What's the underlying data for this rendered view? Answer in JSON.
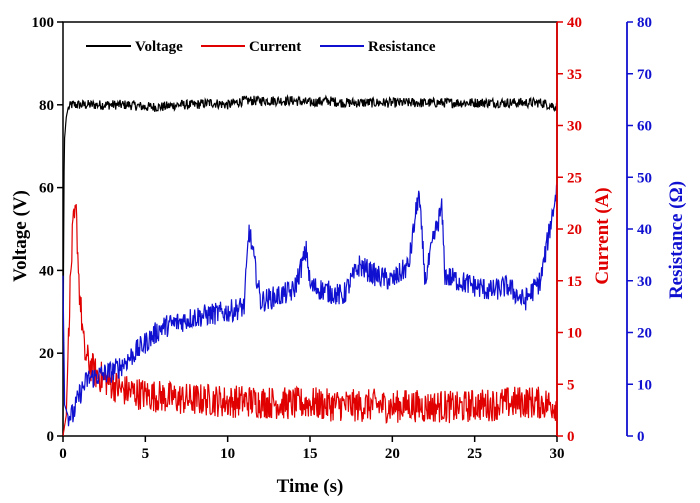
{
  "chart_data": {
    "type": "line",
    "xlabel": "Time (s)",
    "xlim": [
      0,
      30
    ],
    "x_ticks": [
      "0",
      "5",
      "10",
      "15",
      "20",
      "25",
      "30"
    ],
    "axes": {
      "left": {
        "label": "Voltage (V)",
        "ylim": [
          0,
          100
        ],
        "ticks": [
          "0",
          "20",
          "40",
          "60",
          "80",
          "100"
        ],
        "color": "#000000"
      },
      "right1": {
        "label": "Current (A)",
        "ylim": [
          0,
          40
        ],
        "ticks": [
          "0",
          "5",
          "10",
          "15",
          "20",
          "25",
          "30",
          "35",
          "40"
        ],
        "color": "#e00000"
      },
      "right2": {
        "label": "Resistance (Ω)",
        "ylim": [
          0,
          80
        ],
        "ticks": [
          "0",
          "10",
          "20",
          "30",
          "40",
          "50",
          "60",
          "70",
          "80"
        ],
        "color": "#1010d0"
      }
    },
    "legend_position": "top-left",
    "series": [
      {
        "name": "Voltage",
        "axis": "left",
        "color": "#000000",
        "x": [
          0,
          0.05,
          0.1,
          0.2,
          0.3,
          0.5,
          1,
          2,
          3,
          4,
          5,
          6,
          7,
          8,
          9,
          10,
          11,
          12,
          13,
          14,
          15,
          16,
          17,
          18,
          19,
          20,
          21,
          22,
          23,
          24,
          25,
          26,
          27,
          28,
          29,
          30
        ],
        "y": [
          0,
          60,
          72,
          77,
          79,
          80,
          80,
          80,
          80,
          80,
          79.5,
          79.5,
          80,
          80,
          80.5,
          80,
          81,
          81,
          81,
          81,
          80.5,
          81,
          80.5,
          80.5,
          80.5,
          80.5,
          80.5,
          80.5,
          80.5,
          80.5,
          80.5,
          80.5,
          80.5,
          80.5,
          80.5,
          79.5
        ]
      },
      {
        "name": "Current",
        "axis": "right1",
        "color": "#e00000",
        "x": [
          0,
          0.2,
          0.4,
          0.6,
          0.8,
          1,
          1.3,
          1.6,
          2,
          2.5,
          3,
          3.5,
          4,
          5,
          6,
          7,
          8,
          9,
          10,
          11,
          12,
          13,
          14,
          15,
          16,
          17,
          18,
          19,
          20,
          21,
          22,
          23,
          24,
          25,
          26,
          27,
          28,
          29,
          30
        ],
        "y": [
          0,
          2,
          13,
          20,
          21.5,
          14,
          8,
          7,
          6,
          5.5,
          5,
          4.5,
          4.3,
          4,
          3.8,
          3.6,
          3.5,
          3.5,
          3.3,
          3.4,
          3.3,
          3.2,
          3.1,
          3.2,
          3,
          3,
          2.9,
          3,
          2.8,
          3,
          2.8,
          2.9,
          2.7,
          3,
          3,
          3.2,
          3.3,
          3.2,
          3
        ]
      },
      {
        "name": "Resistance",
        "axis": "right2",
        "color": "#1010d0",
        "x": [
          0,
          0.1,
          0.3,
          0.6,
          1,
          1.5,
          2,
          2.5,
          3,
          3.5,
          4,
          5,
          6,
          7,
          8,
          9,
          10,
          11,
          11.3,
          12,
          13,
          14,
          14.8,
          15,
          16,
          17,
          18,
          19,
          20,
          21,
          21.6,
          22,
          22.5,
          23,
          23.2,
          24,
          25,
          26,
          27,
          28,
          29,
          30
        ],
        "y": [
          31,
          6,
          4,
          4,
          8,
          11,
          11.5,
          12,
          12.5,
          13.5,
          15,
          18,
          21,
          22,
          23,
          23.5,
          24,
          25,
          40,
          26,
          27,
          28,
          36,
          29,
          28,
          27,
          33,
          31,
          30,
          33,
          47,
          30,
          38,
          44,
          31,
          30,
          29,
          28,
          29,
          26,
          30,
          48
        ]
      }
    ]
  }
}
